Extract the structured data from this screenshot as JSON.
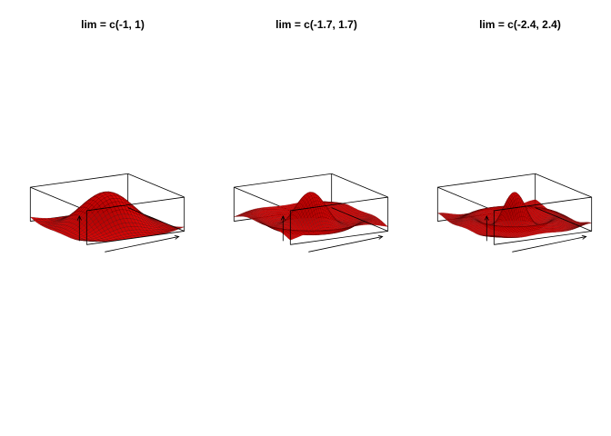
{
  "chart_data": [
    {
      "type": "surface",
      "title": "lim = c(-1, 1)",
      "xlim": [
        -1,
        1
      ],
      "ylim": [
        -1,
        1
      ],
      "surface_color": "#ff0000",
      "mesh_color": "#000000",
      "box": true,
      "axes_arrows": true,
      "function": "sinc-ripple radial surface z = sin(r)/r"
    },
    {
      "type": "surface",
      "title": "lim = c(-1.7, 1.7)",
      "xlim": [
        -1.7,
        1.7
      ],
      "ylim": [
        -1.7,
        1.7
      ],
      "surface_color": "#ff0000",
      "mesh_color": "#000000",
      "box": true,
      "axes_arrows": true,
      "function": "sinc-ripple radial surface z = sin(r)/r"
    },
    {
      "type": "surface",
      "title": "lim = c(-2.4, 2.4)",
      "xlim": [
        -2.4,
        2.4
      ],
      "ylim": [
        -2.4,
        2.4
      ],
      "surface_color": "#ff0000",
      "mesh_color": "#000000",
      "box": true,
      "axes_arrows": true,
      "function": "sinc-ripple radial surface z = sin(r)/r"
    }
  ]
}
